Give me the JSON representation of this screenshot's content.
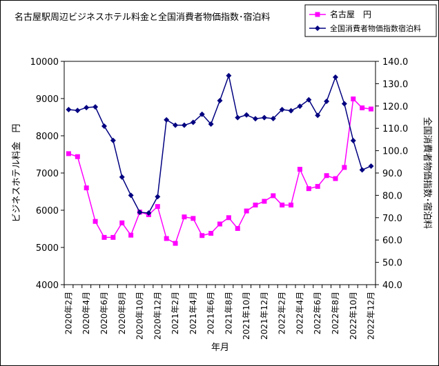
{
  "chart_data": {
    "type": "line",
    "title": "名古屋駅周辺ビジネスホテル料金と全国消費者物価指数･宿泊料",
    "xlabel": "年月",
    "ylabel_left": "ビジネスホテル料金　円",
    "ylabel_right": "全国消費者物価指数･宿泊料",
    "ylim_left": [
      4000,
      10000
    ],
    "yticks_left": [
      "4000",
      "5000",
      "6000",
      "7000",
      "8000",
      "9000",
      "10000"
    ],
    "ylim_right": [
      40.0,
      140.0
    ],
    "yticks_right": [
      "40.0",
      "50.0",
      "60.0",
      "70.0",
      "80.0",
      "90.0",
      "100.0",
      "110.0",
      "120.0",
      "130.0",
      "140.0"
    ],
    "x": [
      "2020年2月",
      "2020年3月",
      "2020年4月",
      "2020年5月",
      "2020年6月",
      "2020年7月",
      "2020年8月",
      "2020年9月",
      "2020年10月",
      "2020年11月",
      "2020年12月",
      "2021年1月",
      "2021年2月",
      "2021年3月",
      "2021年4月",
      "2021年5月",
      "2021年6月",
      "2021年7月",
      "2021年8月",
      "2021年9月",
      "2021年10月",
      "2021年11月",
      "2021年12月",
      "2022年1月",
      "2022年2月",
      "2022年3月",
      "2022年4月",
      "2022年5月",
      "2022年6月",
      "2022年7月",
      "2022年8月",
      "2022年9月",
      "2022年10月",
      "2022年11月",
      "2022年12月"
    ],
    "xtick_labels": [
      "2020年2月",
      "2020年4月",
      "2020年6月",
      "2020年8月",
      "2020年10月",
      "2020年12月",
      "2021年2月",
      "2021年4月",
      "2021年6月",
      "2021年8月",
      "2021年10月",
      "2021年12月",
      "2022年2月",
      "2022年4月",
      "2022年6月",
      "2022年8月",
      "2022年10月",
      "2022年12月"
    ],
    "legend_position": "top-right",
    "series": [
      {
        "name": "名古屋　円",
        "axis": "left",
        "color": "#ff00ff",
        "marker": "square",
        "values": [
          7520,
          7440,
          6600,
          5700,
          5270,
          5270,
          5660,
          5330,
          5950,
          5880,
          6100,
          5240,
          5110,
          5820,
          5780,
          5320,
          5380,
          5630,
          5800,
          5510,
          5980,
          6140,
          6240,
          6390,
          6140,
          6140,
          7100,
          6580,
          6640,
          6930,
          6850,
          7150,
          8990,
          8750,
          8720
        ]
      },
      {
        "name": "全国消費者物価指数宿泊料",
        "axis": "right",
        "color": "#000080",
        "marker": "diamond",
        "values": [
          118.4,
          118.0,
          119.3,
          119.6,
          111.0,
          104.6,
          88.2,
          80.0,
          72.4,
          72.1,
          79.4,
          113.8,
          111.4,
          111.4,
          112.7,
          116.3,
          111.9,
          122.4,
          133.6,
          114.8,
          116.0,
          114.3,
          114.8,
          114.4,
          118.4,
          117.9,
          119.9,
          122.8,
          115.8,
          122.1,
          132.9,
          121.0,
          104.5,
          91.4,
          93.1
        ]
      }
    ]
  }
}
